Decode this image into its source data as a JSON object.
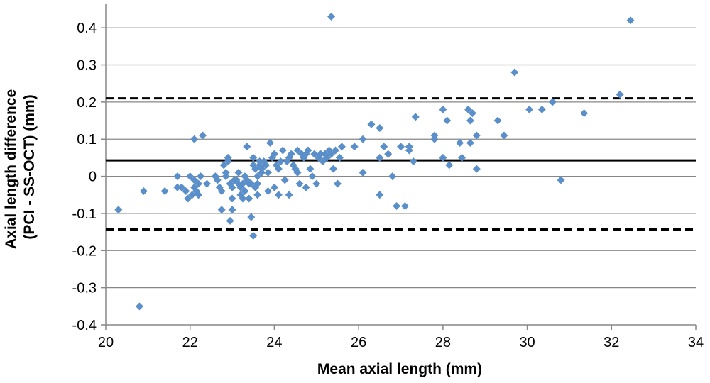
{
  "chart_data": {
    "type": "scatter",
    "title": "",
    "xlabel": "Mean axial length (mm)",
    "ylabel_lines": [
      "Axial length difference",
      "(PCI - SS-OCT) (mm)"
    ],
    "xlim": [
      20,
      34
    ],
    "ylim": [
      -0.4,
      0.45
    ],
    "xticks": [
      20,
      22,
      24,
      26,
      28,
      30,
      32,
      34
    ],
    "xtick_labels": [
      "20",
      "22",
      "24",
      "26",
      "28",
      "30",
      "32",
      "34"
    ],
    "yticks": [
      -0.4,
      -0.3,
      -0.2,
      -0.1,
      0,
      0.1,
      0.2,
      0.3,
      0.4
    ],
    "ytick_labels": [
      "-0.4",
      "-0.3",
      "-0.2",
      "-0.1",
      "0",
      "0.1",
      "0.2",
      "0.3",
      "0.4"
    ],
    "grid": "horizontal",
    "marker": "diamond",
    "marker_color": "#5B8FC9",
    "lines": [
      {
        "kind": "mean",
        "y": 0.043,
        "style": "solid"
      },
      {
        "kind": "upper-limit",
        "y": 0.21,
        "style": "dashed"
      },
      {
        "kind": "lower-limit",
        "y": -0.143,
        "style": "dashed"
      }
    ],
    "points": [
      [
        20.3,
        -0.09
      ],
      [
        20.8,
        -0.35
      ],
      [
        20.9,
        -0.04
      ],
      [
        21.4,
        -0.04
      ],
      [
        21.7,
        0.0
      ],
      [
        21.7,
        -0.03
      ],
      [
        21.8,
        -0.03
      ],
      [
        21.9,
        -0.04
      ],
      [
        21.95,
        -0.06
      ],
      [
        22.0,
        0.0
      ],
      [
        22.05,
        -0.05
      ],
      [
        22.1,
        -0.03
      ],
      [
        22.1,
        0.1
      ],
      [
        22.1,
        -0.01
      ],
      [
        22.15,
        -0.04
      ],
      [
        22.2,
        -0.05
      ],
      [
        22.2,
        -0.02
      ],
      [
        22.25,
        0.0
      ],
      [
        22.3,
        0.11
      ],
      [
        22.4,
        -0.02
      ],
      [
        22.6,
        0.0
      ],
      [
        22.65,
        -0.01
      ],
      [
        22.7,
        -0.03
      ],
      [
        22.75,
        -0.04
      ],
      [
        22.75,
        -0.09
      ],
      [
        22.8,
        0.03
      ],
      [
        22.85,
        0.0
      ],
      [
        22.85,
        0.01
      ],
      [
        22.9,
        0.05
      ],
      [
        22.9,
        0.04
      ],
      [
        22.95,
        -0.02
      ],
      [
        22.95,
        -0.12
      ],
      [
        23.0,
        -0.06
      ],
      [
        23.0,
        -0.03
      ],
      [
        23.0,
        -0.09
      ],
      [
        23.05,
        -0.01
      ],
      [
        23.1,
        -0.01
      ],
      [
        23.15,
        0.01
      ],
      [
        23.15,
        -0.02
      ],
      [
        23.2,
        -0.03
      ],
      [
        23.2,
        -0.05
      ],
      [
        23.25,
        -0.02
      ],
      [
        23.25,
        -0.06
      ],
      [
        23.3,
        0.0
      ],
      [
        23.3,
        -0.04
      ],
      [
        23.35,
        0.08
      ],
      [
        23.35,
        -0.01
      ],
      [
        23.4,
        -0.02
      ],
      [
        23.4,
        -0.06
      ],
      [
        23.45,
        -0.11
      ],
      [
        23.45,
        -0.02
      ],
      [
        23.5,
        0.05
      ],
      [
        23.5,
        0.03
      ],
      [
        23.5,
        -0.16
      ],
      [
        23.55,
        0.02
      ],
      [
        23.55,
        -0.03
      ],
      [
        23.6,
        0.0
      ],
      [
        23.6,
        -0.05
      ],
      [
        23.6,
        -0.02
      ],
      [
        23.65,
        0.04
      ],
      [
        23.65,
        0.03
      ],
      [
        23.7,
        0.02
      ],
      [
        23.7,
        0.01
      ],
      [
        23.75,
        0.04
      ],
      [
        23.8,
        0.03
      ],
      [
        23.85,
        0.01
      ],
      [
        23.85,
        -0.04
      ],
      [
        23.9,
        0.09
      ],
      [
        23.95,
        0.05
      ],
      [
        24.0,
        0.06
      ],
      [
        24.0,
        -0.03
      ],
      [
        24.05,
        0.03
      ],
      [
        24.1,
        0.02
      ],
      [
        24.1,
        -0.05
      ],
      [
        24.15,
        0.04
      ],
      [
        24.2,
        0.07
      ],
      [
        24.25,
        -0.01
      ],
      [
        24.3,
        0.04
      ],
      [
        24.35,
        0.05
      ],
      [
        24.35,
        -0.05
      ],
      [
        24.4,
        0.06
      ],
      [
        24.45,
        0.03
      ],
      [
        24.5,
        0.02
      ],
      [
        24.55,
        0.07
      ],
      [
        24.55,
        0.01
      ],
      [
        24.6,
        -0.02
      ],
      [
        24.65,
        0.06
      ],
      [
        24.7,
        0.05
      ],
      [
        24.75,
        0.06
      ],
      [
        24.75,
        -0.03
      ],
      [
        24.8,
        0.07
      ],
      [
        24.85,
        0.02
      ],
      [
        24.9,
        0.0
      ],
      [
        24.95,
        0.06
      ],
      [
        25.0,
        -0.02
      ],
      [
        25.05,
        0.05
      ],
      [
        25.1,
        0.06
      ],
      [
        25.15,
        0.04
      ],
      [
        25.2,
        0.06
      ],
      [
        25.25,
        0.05
      ],
      [
        25.3,
        0.07
      ],
      [
        25.35,
        0.06
      ],
      [
        25.4,
        0.02
      ],
      [
        25.45,
        0.07
      ],
      [
        25.5,
        -0.02
      ],
      [
        25.55,
        0.05
      ],
      [
        25.6,
        0.08
      ],
      [
        25.35,
        0.43
      ],
      [
        25.9,
        0.08
      ],
      [
        26.1,
        0.1
      ],
      [
        26.1,
        0.01
      ],
      [
        26.3,
        0.14
      ],
      [
        26.5,
        0.05
      ],
      [
        26.5,
        0.13
      ],
      [
        26.5,
        -0.05
      ],
      [
        26.6,
        0.08
      ],
      [
        26.7,
        0.06
      ],
      [
        26.8,
        0.0
      ],
      [
        26.9,
        -0.08
      ],
      [
        27.0,
        0.08
      ],
      [
        27.1,
        -0.08
      ],
      [
        27.2,
        0.07
      ],
      [
        27.2,
        0.08
      ],
      [
        27.3,
        0.04
      ],
      [
        27.35,
        0.16
      ],
      [
        27.8,
        0.11
      ],
      [
        27.8,
        0.1
      ],
      [
        28.0,
        0.18
      ],
      [
        28.0,
        0.05
      ],
      [
        28.1,
        0.15
      ],
      [
        28.15,
        0.03
      ],
      [
        28.4,
        0.09
      ],
      [
        28.45,
        0.05
      ],
      [
        28.6,
        0.18
      ],
      [
        28.65,
        0.09
      ],
      [
        28.65,
        0.15
      ],
      [
        28.7,
        0.17
      ],
      [
        28.8,
        0.11
      ],
      [
        28.8,
        0.02
      ],
      [
        29.3,
        0.15
      ],
      [
        29.45,
        0.11
      ],
      [
        29.7,
        0.28
      ],
      [
        30.05,
        0.18
      ],
      [
        30.35,
        0.18
      ],
      [
        30.6,
        0.2
      ],
      [
        30.8,
        -0.01
      ],
      [
        31.35,
        0.17
      ],
      [
        32.2,
        0.22
      ],
      [
        32.45,
        0.42
      ]
    ]
  }
}
